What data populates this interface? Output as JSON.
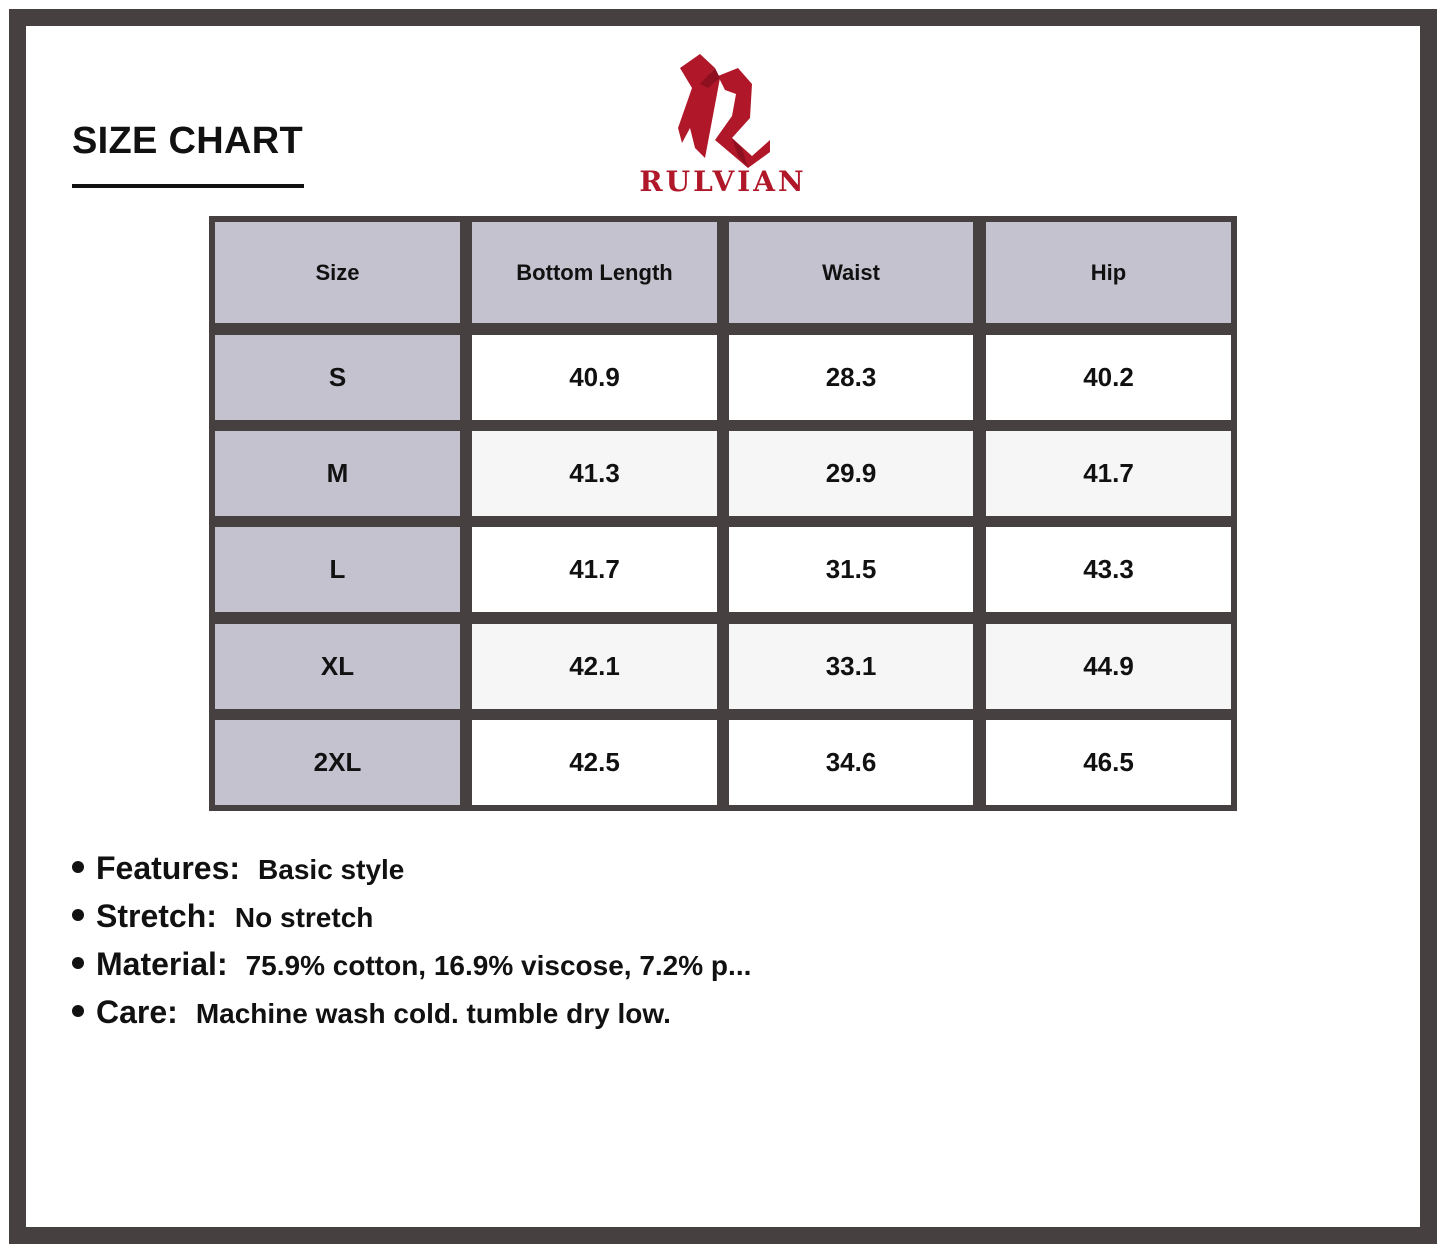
{
  "title": "SIZE CHART",
  "brand": {
    "name": "RULVIAN",
    "color": "#b0182a"
  },
  "table": {
    "headers": [
      "Size",
      "Bottom Length",
      "Waist",
      "Hip"
    ],
    "rows": [
      [
        "S",
        "40.9",
        "28.3",
        "40.2"
      ],
      [
        "M",
        "41.3",
        "29.9",
        "41.7"
      ],
      [
        "L",
        "41.7",
        "31.5",
        "43.3"
      ],
      [
        "XL",
        "42.1",
        "33.1",
        "44.9"
      ],
      [
        "2XL",
        "42.5",
        "34.6",
        "46.5"
      ]
    ]
  },
  "notes": [
    {
      "label": "Features:",
      "value": "Basic style"
    },
    {
      "label": "Stretch:",
      "value": "No stretch"
    },
    {
      "label": "Material:",
      "value": "75.9% cotton, 16.9% viscose, 7.2% p..."
    },
    {
      "label": "Care:",
      "value": "Machine wash cold. tumble dry low."
    }
  ]
}
